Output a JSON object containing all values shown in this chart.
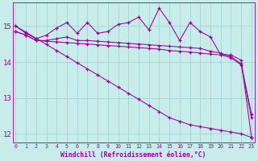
{
  "xlabel": "Windchill (Refroidissement éolien,°C)",
  "background_color": "#c8ecea",
  "grid_color": "#a8d8d8",
  "line_color": "#990099",
  "hours": [
    0,
    1,
    2,
    3,
    4,
    5,
    6,
    7,
    8,
    9,
    10,
    11,
    12,
    13,
    14,
    15,
    16,
    17,
    18,
    19,
    20,
    21,
    22,
    23
  ],
  "series1": [
    15.0,
    14.8,
    14.65,
    14.75,
    14.95,
    15.1,
    14.8,
    15.1,
    14.8,
    14.85,
    15.05,
    15.1,
    15.25,
    14.9,
    15.5,
    15.1,
    14.6,
    15.1,
    14.85,
    14.7,
    14.2,
    14.2,
    14.05,
    11.9
  ],
  "series2": [
    14.85,
    14.75,
    14.6,
    14.6,
    14.65,
    14.7,
    14.6,
    14.6,
    14.58,
    14.56,
    14.54,
    14.52,
    14.5,
    14.48,
    14.46,
    14.44,
    14.42,
    14.4,
    14.38,
    14.3,
    14.25,
    14.15,
    13.95,
    12.55
  ],
  "series3": [
    14.85,
    14.75,
    14.6,
    14.58,
    14.56,
    14.54,
    14.52,
    14.5,
    14.48,
    14.46,
    14.44,
    14.42,
    14.4,
    14.38,
    14.36,
    14.32,
    14.3,
    14.28,
    14.25,
    14.22,
    14.2,
    14.12,
    13.92,
    12.45
  ],
  "series4": [
    15.0,
    14.83,
    14.66,
    14.49,
    14.32,
    14.15,
    13.98,
    13.81,
    13.64,
    13.47,
    13.3,
    13.13,
    12.96,
    12.79,
    12.62,
    12.45,
    12.35,
    12.25,
    12.2,
    12.15,
    12.1,
    12.05,
    12.0,
    11.9
  ],
  "ylim": [
    11.75,
    15.65
  ],
  "yticks": [
    12,
    13,
    14,
    15
  ],
  "xticks": [
    0,
    1,
    2,
    3,
    4,
    5,
    6,
    7,
    8,
    9,
    10,
    11,
    12,
    13,
    14,
    15,
    16,
    17,
    18,
    19,
    20,
    21,
    22,
    23
  ],
  "xlim": [
    -0.3,
    23.3
  ]
}
